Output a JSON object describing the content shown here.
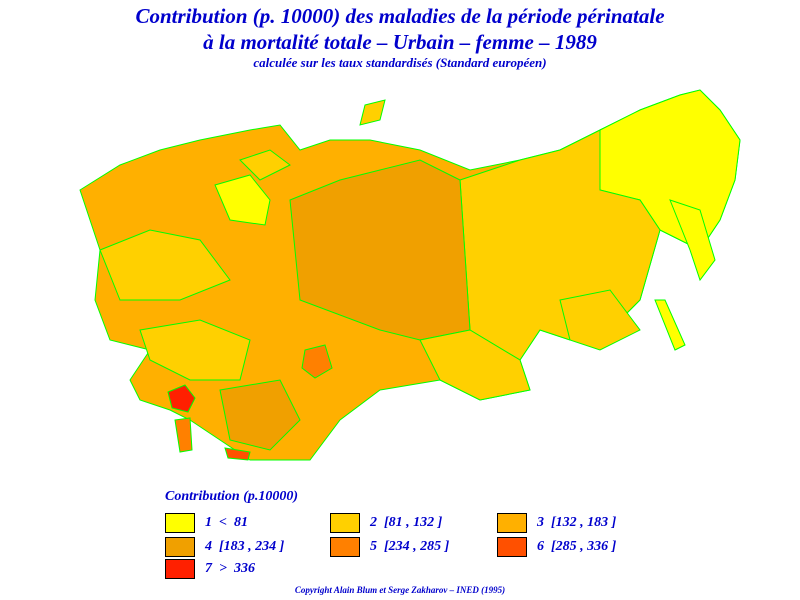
{
  "header": {
    "title_line1": "Contribution (p. 10000) des maladies de la période périnatale",
    "title_line2": "à la mortalité totale – Urbain – femme – 1989",
    "subtitle": "calculée sur les taux standardisés (Standard européen)"
  },
  "legend": {
    "title": "Contribution (p.10000)",
    "items": [
      {
        "label": "1  <  81",
        "color": "#ffff00"
      },
      {
        "label": "2  [81 , 132 ]",
        "color": "#ffd000"
      },
      {
        "label": "3  [132 , 183 ]",
        "color": "#ffb000"
      },
      {
        "label": "4  [183 , 234 ]",
        "color": "#f0a000"
      },
      {
        "label": "5  [234 , 285 ]",
        "color": "#ff8000"
      },
      {
        "label": "6  [285 , 336 ]",
        "color": "#ff5000"
      },
      {
        "label": "7  >  336",
        "color": "#ff2000"
      }
    ]
  },
  "footer": {
    "copyright": "Copyright Alain Blum et Serge Zakharov – INED (1995)"
  }
}
